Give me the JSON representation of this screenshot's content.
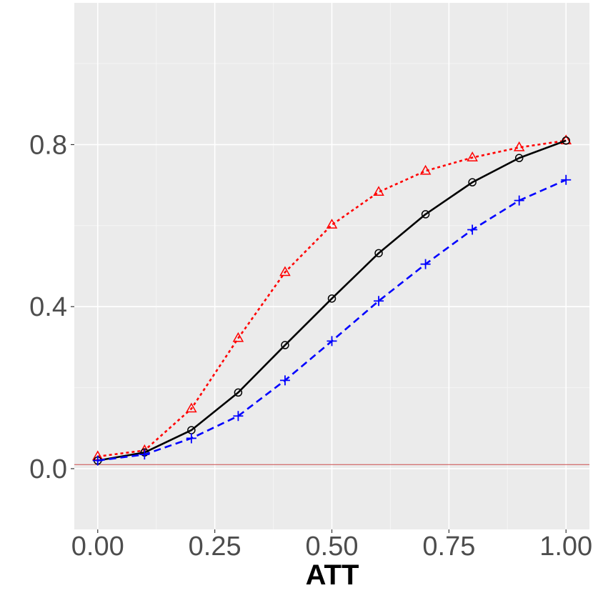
{
  "chart_data": {
    "type": "line",
    "title": "",
    "xlabel": "ATT",
    "ylabel": "",
    "xlim": [
      -0.05,
      1.05
    ],
    "ylim": [
      -0.15,
      1.15
    ],
    "grid": true,
    "legend": "none",
    "x_ticks": [
      0.0,
      0.25,
      0.5,
      0.75,
      1.0
    ],
    "x_tick_labels": [
      "0.00",
      "0.25",
      "0.50",
      "0.75",
      "1.00"
    ],
    "y_ticks": [
      0.0,
      0.4,
      0.8
    ],
    "y_tick_labels": [
      "0.0",
      "0.4",
      "0.8"
    ],
    "reference_line": {
      "y": 0.01,
      "color": "#cc4c4c"
    },
    "x": [
      0.0,
      0.1,
      0.2,
      0.3,
      0.4,
      0.5,
      0.6,
      0.7,
      0.8,
      0.9,
      1.0
    ],
    "series": [
      {
        "values": [
          0.03,
          0.045,
          0.148,
          0.322,
          0.485,
          0.602,
          0.683,
          0.735,
          0.768,
          0.793,
          0.81
        ],
        "color": "#ff0000",
        "dash": "dotted",
        "marker": "triangle"
      },
      {
        "values": [
          0.02,
          0.04,
          0.095,
          0.188,
          0.305,
          0.42,
          0.532,
          0.628,
          0.707,
          0.767,
          0.81
        ],
        "color": "#000000",
        "dash": "solid",
        "marker": "circle"
      },
      {
        "values": [
          0.02,
          0.035,
          0.075,
          0.13,
          0.218,
          0.315,
          0.414,
          0.505,
          0.59,
          0.662,
          0.713
        ],
        "color": "#0000ff",
        "dash": "dashed",
        "marker": "plus"
      }
    ]
  }
}
